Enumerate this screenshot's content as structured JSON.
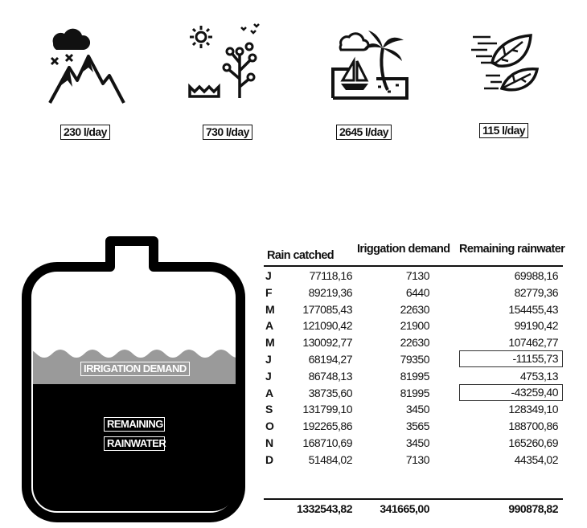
{
  "icons": [
    {
      "name": "mountain-rain-icon",
      "rate": "230 l/day"
    },
    {
      "name": "garden-sun-icon",
      "rate": "730 l/day"
    },
    {
      "name": "beach-palm-icon",
      "rate": "2645 l/day"
    },
    {
      "name": "leaves-wind-icon",
      "rate": "115 l/day"
    }
  ],
  "tank": {
    "irrigation_label": "IRRIGATION DEMAND",
    "remaining_label_1": "REMAINING",
    "remaining_label_2": "RAINWATER",
    "colors": {
      "water": "#000000",
      "irrigation": "#9a9a9a"
    }
  },
  "table": {
    "headers": {
      "rain": "Rain catched",
      "irrigation": "Iriggation demand",
      "remaining": "Remaining rainwater"
    },
    "rows": [
      {
        "m": "J",
        "rain": "77118,16",
        "irr": "7130",
        "rem": "69988,16",
        "neg": false
      },
      {
        "m": "F",
        "rain": "89219,36",
        "irr": "6440",
        "rem": "82779,36",
        "neg": false
      },
      {
        "m": "M",
        "rain": "177085,43",
        "irr": "22630",
        "rem": "154455,43",
        "neg": false
      },
      {
        "m": "A",
        "rain": "121090,42",
        "irr": "21900",
        "rem": "99190,42",
        "neg": false
      },
      {
        "m": "M",
        "rain": "130092,77",
        "irr": "22630",
        "rem": "107462,77",
        "neg": false
      },
      {
        "m": "J",
        "rain": "68194,27",
        "irr": "79350",
        "rem": "-11155,73",
        "neg": true
      },
      {
        "m": "J",
        "rain": "86748,13",
        "irr": "81995",
        "rem": "4753,13",
        "neg": false
      },
      {
        "m": "A",
        "rain": "38735,60",
        "irr": "81995",
        "rem": "-43259,40",
        "neg": true
      },
      {
        "m": "S",
        "rain": "131799,10",
        "irr": "3450",
        "rem": "128349,10",
        "neg": false
      },
      {
        "m": "O",
        "rain": "192265,86",
        "irr": "3565",
        "rem": "188700,86",
        "neg": false
      },
      {
        "m": "N",
        "rain": "168710,69",
        "irr": "3450",
        "rem": "165260,69",
        "neg": false
      },
      {
        "m": "D",
        "rain": "51484,02",
        "irr": "7130",
        "rem": "44354,02",
        "neg": false
      }
    ],
    "totals": {
      "rain": "1332543,82",
      "irr": "341665,00",
      "rem": "990878,82"
    }
  }
}
